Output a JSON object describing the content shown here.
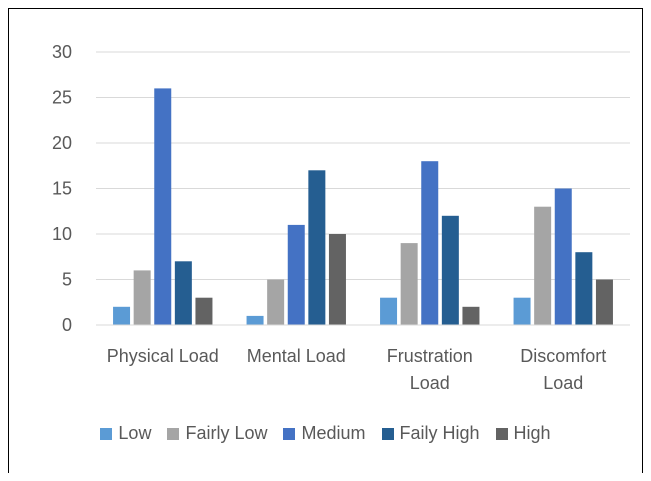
{
  "chart_data": {
    "type": "bar",
    "categories": [
      [
        "Physical Load"
      ],
      [
        "Mental Load"
      ],
      [
        "Frustration",
        "Load"
      ],
      [
        "Discomfort",
        "Load"
      ]
    ],
    "series": [
      {
        "name": "Low",
        "color": "#5b9bd5",
        "values": [
          2,
          1,
          3,
          3
        ]
      },
      {
        "name": "Fairly Low",
        "color": "#a5a5a5",
        "values": [
          6,
          5,
          9,
          13
        ]
      },
      {
        "name": "Medium",
        "color": "#4472c4",
        "values": [
          26,
          11,
          18,
          15
        ]
      },
      {
        "name": "Faily High",
        "color": "#255e91",
        "values": [
          7,
          17,
          12,
          8
        ]
      },
      {
        "name": "High",
        "color": "#636363",
        "values": [
          3,
          10,
          2,
          5
        ]
      }
    ],
    "ylim": [
      0,
      30
    ],
    "yticks": [
      0,
      5,
      10,
      15,
      20,
      25,
      30
    ],
    "grid": true,
    "legend_position": "bottom"
  }
}
